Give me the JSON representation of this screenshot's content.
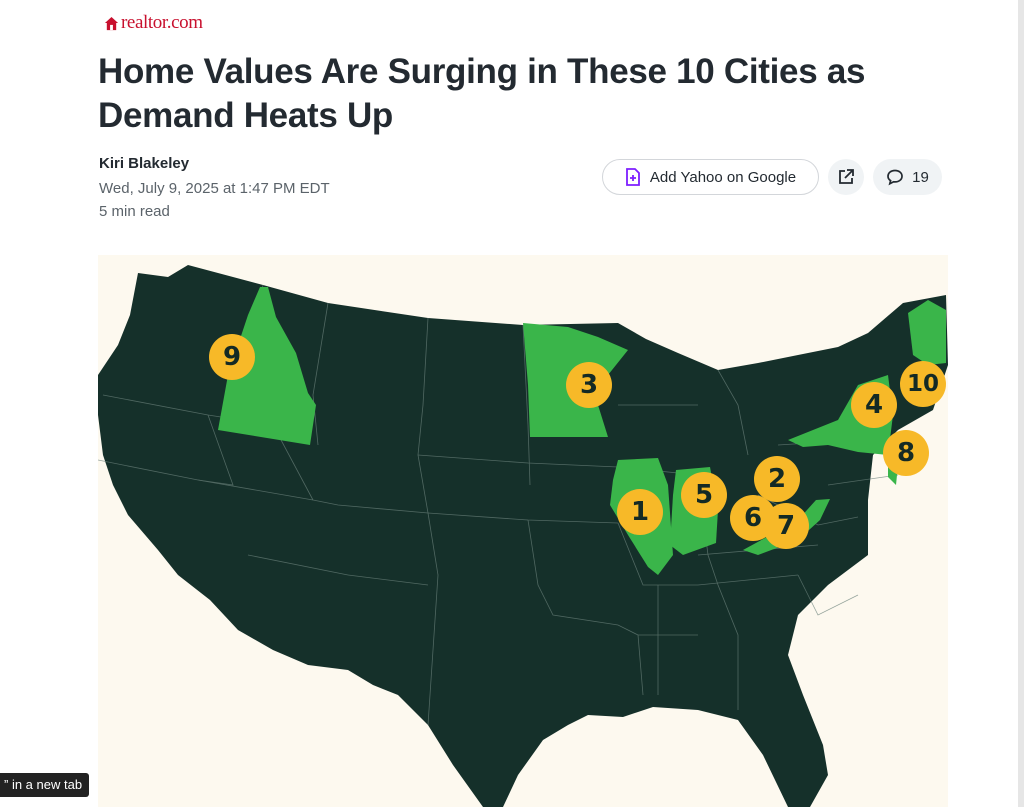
{
  "site": {
    "brand": "realtor.com",
    "brand_color": "#c8102e"
  },
  "article": {
    "headline": "Home Values Are Surging in These 10 Cities as Demand Heats Up",
    "author": "Kiri Blakeley",
    "date": "Wed, July 9, 2025 at 1:47 PM EDT",
    "read_time": "5 min read"
  },
  "actions": {
    "google_button": "Add Yahoo on Google",
    "share_icon": "external-share-icon",
    "comments_icon": "comment-bubble-icon",
    "comments_count": "19"
  },
  "map": {
    "base_color": "#15302a",
    "highlight_color": "#3ab54a",
    "marker_color": "#f7b928",
    "markers": [
      {
        "label": "1"
      },
      {
        "label": "2"
      },
      {
        "label": "3"
      },
      {
        "label": "4"
      },
      {
        "label": "5"
      },
      {
        "label": "6"
      },
      {
        "label": "7"
      },
      {
        "label": "8"
      },
      {
        "label": "9"
      },
      {
        "label": "10"
      }
    ]
  },
  "tooltip": {
    "text": "” in a new tab"
  }
}
